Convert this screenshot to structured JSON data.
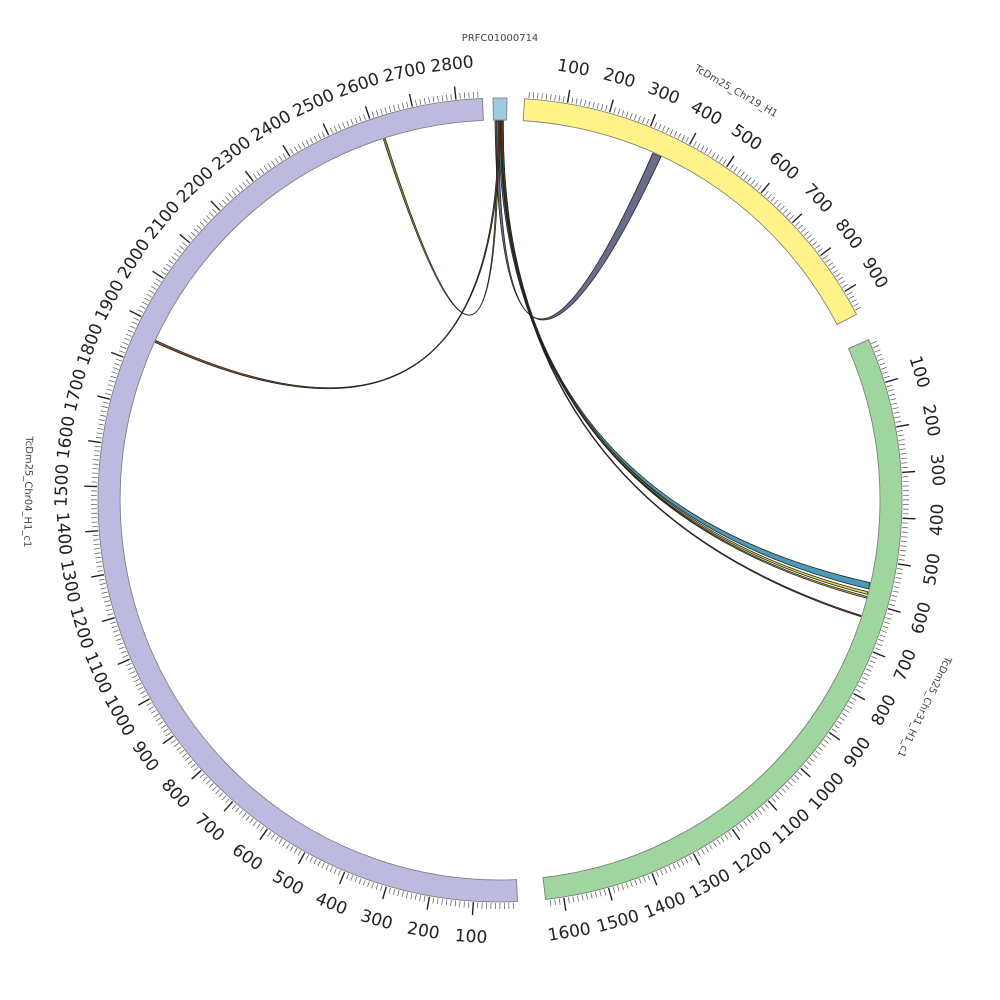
{
  "diagram": {
    "type": "circos",
    "center_label": "",
    "chromosomes": [
      {
        "id": "PRFC01000714",
        "label": "PRFC01000714",
        "length": 8,
        "color": "#9ecae1",
        "start_deg": -1.0,
        "end_deg": 1.0,
        "label_deg": 0,
        "label_mode": "horizontal",
        "ticks": []
      },
      {
        "id": "TcDm25_Chr19_H1",
        "label": "TcDm25_Chr19_H1",
        "length": 960,
        "color": "#fff38a",
        "start_deg": 3.5,
        "end_deg": 62.5,
        "label_deg": 30,
        "label_mode": "radial",
        "ticks": [
          100,
          200,
          300,
          400,
          500,
          600,
          700,
          800,
          900
        ]
      },
      {
        "id": "TcDm25_Chr31_H1_c1",
        "label": "TcDm25_Chr31_H1_c1",
        "length": 1640,
        "color": "#9fd59f",
        "start_deg": 66.5,
        "end_deg": 173.5,
        "label_deg": 116,
        "label_mode": "radial",
        "ticks": [
          100,
          200,
          300,
          400,
          500,
          600,
          700,
          800,
          900,
          1000,
          1100,
          1200,
          1300,
          1400,
          1500,
          1600
        ]
      },
      {
        "id": "TcDm25_Chr04_H1_c1",
        "label": "TcDm25_Chr04_H1_c1",
        "length": 2860,
        "color": "#bcbade",
        "start_deg": 177.5,
        "end_deg": 357.5,
        "label_deg": 271,
        "label_mode": "radial",
        "ticks": [
          100,
          200,
          300,
          400,
          500,
          600,
          700,
          800,
          900,
          1000,
          1100,
          1200,
          1300,
          1400,
          1500,
          1600,
          1700,
          1800,
          1900,
          2000,
          2100,
          2200,
          2300,
          2400,
          2500,
          2600,
          2700,
          2800
        ]
      }
    ],
    "links": [
      {
        "from": "PRFC01000714",
        "from_range": [
          1,
          3
        ],
        "to": "TcDm25_Chr19_H1",
        "to_range": [
          330,
          352
        ],
        "color": "#5b5b80"
      },
      {
        "from": "PRFC01000714",
        "from_range": [
          3,
          5
        ],
        "to": "TcDm25_Chr31_H1_c1",
        "to_range": [
          553,
          568
        ],
        "color": "#3a8fb0"
      },
      {
        "from": "PRFC01000714",
        "from_range": [
          4,
          6
        ],
        "to": "TcDm25_Chr31_H1_c1",
        "to_range": [
          575,
          581
        ],
        "color": "#e0d93a"
      },
      {
        "from": "PRFC01000714",
        "from_range": [
          4.5,
          5.5
        ],
        "to": "TcDm25_Chr31_H1_c1",
        "to_range": [
          586,
          590
        ],
        "color": "#b8b040"
      },
      {
        "from": "PRFC01000714",
        "from_range": [
          5,
          6
        ],
        "to": "TcDm25_Chr31_H1_c1",
        "to_range": [
          632,
          635
        ],
        "color": "#8b3a1a"
      },
      {
        "from": "PRFC01000714",
        "from_range": [
          2,
          3
        ],
        "to": "TcDm25_Chr04_H1_c1",
        "to_range": [
          2615,
          2620
        ],
        "color": "#8f8a20"
      },
      {
        "from": "PRFC01000714",
        "from_range": [
          3,
          4
        ],
        "to": "TcDm25_Chr04_H1_c1",
        "to_range": [
          1860,
          1865
        ],
        "color": "#8b3a1a"
      }
    ]
  }
}
